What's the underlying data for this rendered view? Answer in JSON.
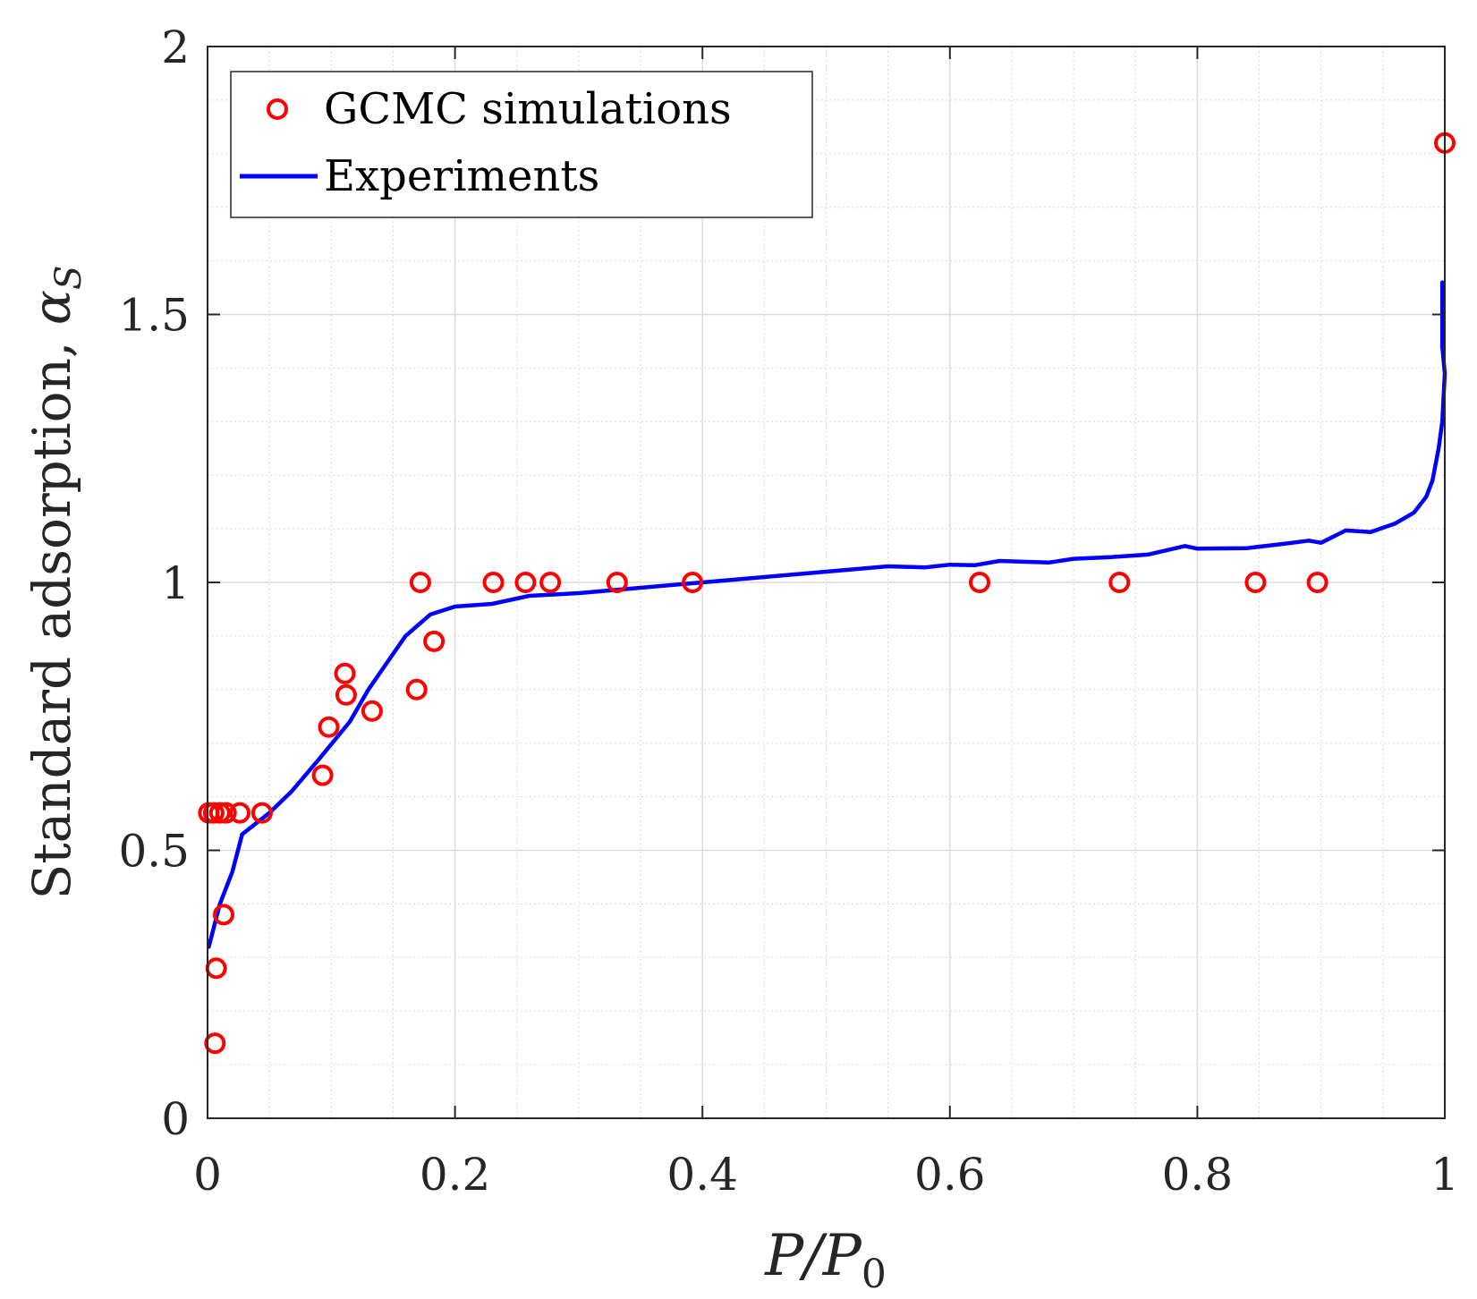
{
  "chart_data": {
    "type": "scatter+line",
    "title": "",
    "xlabel": "P/P",
    "xlabel_sub": "0",
    "ylabel": "Standard adsorption, ",
    "ylabel_symbol": "α",
    "ylabel_sub": "S",
    "xlim": [
      0,
      1
    ],
    "ylim": [
      0,
      2
    ],
    "xticks": [
      0,
      0.2,
      0.4,
      0.6,
      0.8,
      1
    ],
    "xtick_labels": [
      "0",
      "0.2",
      "0.4",
      "0.6",
      "0.8",
      "1"
    ],
    "yticks": [
      0,
      0.5,
      1,
      1.5,
      2
    ],
    "ytick_labels": [
      "0",
      "0.5",
      "1",
      "1.5",
      "2"
    ],
    "grid": true,
    "minor_grid": true,
    "legend_position": "top-left",
    "series": [
      {
        "name": "GCMC simulations",
        "kind": "markers",
        "marker": "circle",
        "color": "#ff0000",
        "points": [
          [
            0.001,
            0.57
          ],
          [
            0.005,
            0.57
          ],
          [
            0.01,
            0.57
          ],
          [
            0.015,
            0.57
          ],
          [
            0.026,
            0.57
          ],
          [
            0.044,
            0.57
          ],
          [
            0.006,
            0.14
          ],
          [
            0.007,
            0.28
          ],
          [
            0.013,
            0.38
          ],
          [
            0.093,
            0.64
          ],
          [
            0.098,
            0.73
          ],
          [
            0.111,
            0.83
          ],
          [
            0.112,
            0.79
          ],
          [
            0.133,
            0.76
          ],
          [
            0.169,
            0.8
          ],
          [
            0.172,
            1.0
          ],
          [
            0.183,
            0.89
          ],
          [
            0.231,
            1.0
          ],
          [
            0.257,
            1.0
          ],
          [
            0.277,
            1.0
          ],
          [
            0.331,
            1.0
          ],
          [
            0.392,
            1.0
          ],
          [
            0.624,
            1.0
          ],
          [
            0.737,
            1.0
          ],
          [
            0.847,
            1.0
          ],
          [
            0.897,
            1.0
          ],
          [
            1.0,
            1.82
          ]
        ]
      },
      {
        "name": "Experiments",
        "kind": "line",
        "color": "#0000ff",
        "points": [
          [
            0.001,
            0.32
          ],
          [
            0.01,
            0.4
          ],
          [
            0.02,
            0.46
          ],
          [
            0.028,
            0.53
          ],
          [
            0.05,
            0.57
          ],
          [
            0.068,
            0.61
          ],
          [
            0.09,
            0.67
          ],
          [
            0.115,
            0.74
          ],
          [
            0.13,
            0.8
          ],
          [
            0.145,
            0.85
          ],
          [
            0.16,
            0.9
          ],
          [
            0.18,
            0.94
          ],
          [
            0.2,
            0.955
          ],
          [
            0.23,
            0.96
          ],
          [
            0.26,
            0.975
          ],
          [
            0.3,
            0.98
          ],
          [
            0.35,
            0.99
          ],
          [
            0.4,
            1.0
          ],
          [
            0.45,
            1.01
          ],
          [
            0.5,
            1.02
          ],
          [
            0.55,
            1.03
          ],
          [
            0.58,
            1.028
          ],
          [
            0.6,
            1.033
          ],
          [
            0.62,
            1.032
          ],
          [
            0.64,
            1.04
          ],
          [
            0.68,
            1.037
          ],
          [
            0.7,
            1.044
          ],
          [
            0.73,
            1.047
          ],
          [
            0.76,
            1.052
          ],
          [
            0.79,
            1.068
          ],
          [
            0.8,
            1.063
          ],
          [
            0.84,
            1.064
          ],
          [
            0.87,
            1.072
          ],
          [
            0.89,
            1.078
          ],
          [
            0.9,
            1.074
          ],
          [
            0.92,
            1.097
          ],
          [
            0.94,
            1.094
          ],
          [
            0.96,
            1.11
          ],
          [
            0.975,
            1.13
          ],
          [
            0.985,
            1.16
          ],
          [
            0.99,
            1.19
          ],
          [
            0.995,
            1.25
          ],
          [
            0.998,
            1.3
          ],
          [
            1.0,
            1.39
          ],
          [
            0.998,
            1.44
          ],
          [
            0.998,
            1.56
          ]
        ]
      }
    ]
  }
}
